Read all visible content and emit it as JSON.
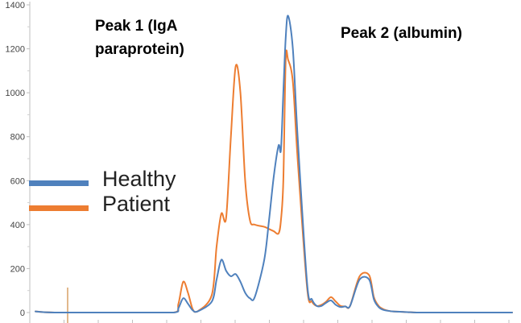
{
  "chart_data": {
    "type": "line",
    "title": "",
    "xlabel": "",
    "ylabel": "",
    "ylim": [
      0,
      1400
    ],
    "y_ticks": [
      0,
      200,
      400,
      600,
      800,
      1000,
      1200,
      1400
    ],
    "y_tick_labels": [
      "0",
      "200",
      "400",
      "600",
      "800",
      "1000",
      "1200",
      "1400"
    ],
    "xlim": [
      0,
      100
    ],
    "grid": false,
    "legend": "left",
    "series": [
      {
        "name": "Healthy",
        "color": "#4f81bd",
        "x": [
          0,
          4,
          20,
          29,
          30,
          31,
          32,
          33,
          34,
          37,
          38,
          39,
          40,
          41,
          42,
          43,
          44,
          45,
          46,
          48,
          49,
          50,
          51,
          51.5,
          52,
          52.5,
          53,
          54,
          55,
          57,
          58,
          59,
          60,
          61,
          62,
          63,
          64,
          65,
          66,
          68,
          70,
          71,
          72,
          73,
          74,
          75,
          78,
          80,
          84,
          100
        ],
        "y": [
          5,
          0,
          0,
          0,
          20,
          65,
          40,
          10,
          5,
          50,
          150,
          240,
          190,
          165,
          175,
          140,
          90,
          65,
          70,
          240,
          420,
          620,
          760,
          740,
          1000,
          1250,
          1350,
          1200,
          800,
          130,
          60,
          30,
          30,
          45,
          55,
          35,
          25,
          28,
          30,
          150,
          150,
          60,
          25,
          12,
          8,
          5,
          2,
          0,
          0,
          0
        ],
        "y_key": [
          0,
          0,
          65,
          240,
          175,
          420,
          760,
          1350,
          30,
          55,
          150,
          0
        ]
      },
      {
        "name": "Patient",
        "color": "#ed7d31",
        "x": [
          0,
          4,
          20,
          29,
          30,
          31,
          32,
          33,
          34,
          37,
          38,
          39,
          40,
          41,
          42,
          43,
          44,
          45,
          46,
          48,
          49,
          50,
          51,
          51.5,
          52,
          52.5,
          53,
          54,
          55,
          57,
          58,
          59,
          60,
          61,
          62,
          63,
          64,
          65,
          66,
          68,
          70,
          71,
          72,
          73,
          74,
          75,
          78,
          80,
          84,
          100
        ],
        "y": [
          5,
          0,
          0,
          0,
          40,
          140,
          90,
          15,
          5,
          80,
          300,
          450,
          430,
          800,
          1120,
          1000,
          600,
          420,
          400,
          390,
          380,
          370,
          360,
          420,
          600,
          1150,
          1150,
          1050,
          700,
          110,
          50,
          30,
          35,
          50,
          70,
          50,
          30,
          28,
          30,
          165,
          170,
          70,
          30,
          15,
          8,
          5,
          2,
          0,
          0,
          0
        ]
      }
    ],
    "annotations": [
      "Peak 1 (IgA paraprotein)",
      "Peak 2 (albumin)"
    ]
  },
  "annotations": {
    "peak1_line1": "Peak 1 (IgA",
    "peak1_line2": "paraprotein)",
    "peak2": "Peak 2 (albumin)"
  },
  "legend": {
    "healthy_label": "Healthy",
    "patient_label": "Patient",
    "healthy_color": "#4f81bd",
    "patient_color": "#ed7d31"
  }
}
